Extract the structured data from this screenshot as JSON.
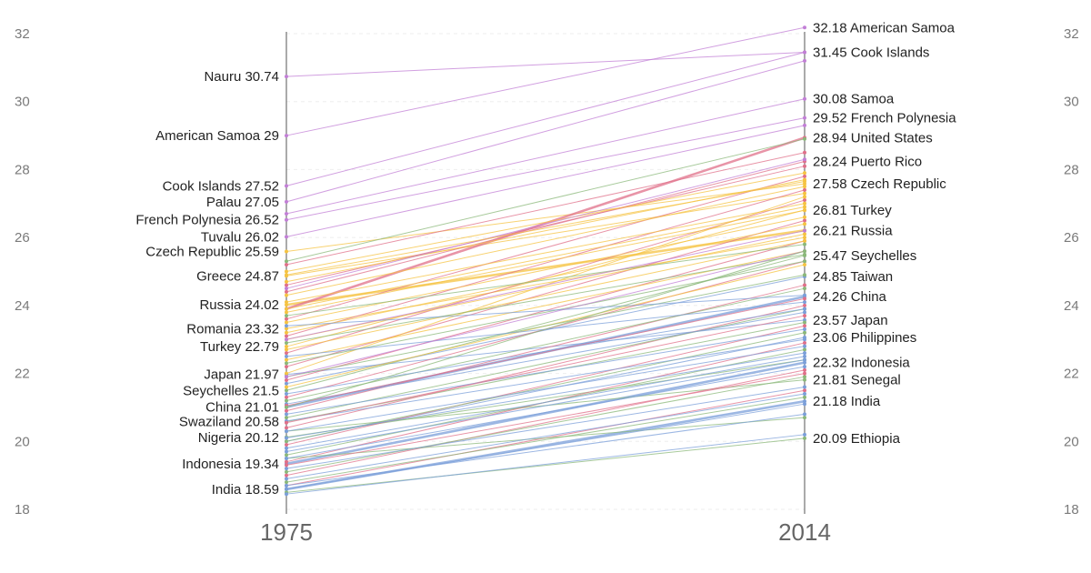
{
  "chart_data": {
    "type": "line",
    "chart_style": "slope",
    "x": [
      "1975",
      "2014"
    ],
    "ylim": [
      18,
      32
    ],
    "yticks": [
      18,
      20,
      22,
      24,
      26,
      28,
      30,
      32
    ],
    "grid": false,
    "legend": "none",
    "colors": {
      "oceania": "#c27fd6",
      "americas": "#e0708a",
      "europe": "#f5c342",
      "africa": "#8bb87a",
      "asia": "#7b9fd9"
    },
    "labeled_start": [
      {
        "name": "Nauru",
        "value": 30.74,
        "text": "Nauru 30.74"
      },
      {
        "name": "American Samoa",
        "value": 29,
        "text": "American Samoa 29"
      },
      {
        "name": "Cook Islands",
        "value": 27.52,
        "text": "Cook Islands 27.52"
      },
      {
        "name": "Palau",
        "value": 27.05,
        "text": "Palau 27.05"
      },
      {
        "name": "French Polynesia",
        "value": 26.52,
        "text": "French Polynesia 26.52"
      },
      {
        "name": "Tuvalu",
        "value": 26.02,
        "text": "Tuvalu 26.02"
      },
      {
        "name": "Czech Republic",
        "value": 25.59,
        "text": "Czech Republic 25.59"
      },
      {
        "name": "Greece",
        "value": 24.87,
        "text": "Greece 24.87"
      },
      {
        "name": "Russia",
        "value": 24.02,
        "text": "Russia 24.02"
      },
      {
        "name": "Romania",
        "value": 23.32,
        "text": "Romania 23.32"
      },
      {
        "name": "Turkey",
        "value": 22.79,
        "text": "Turkey 22.79"
      },
      {
        "name": "Japan",
        "value": 21.97,
        "text": "Japan 21.97"
      },
      {
        "name": "Seychelles",
        "value": 21.5,
        "text": "Seychelles 21.5"
      },
      {
        "name": "China",
        "value": 21.01,
        "text": "China 21.01"
      },
      {
        "name": "Swaziland",
        "value": 20.58,
        "text": "Swaziland 20.58"
      },
      {
        "name": "Nigeria",
        "value": 20.12,
        "text": "Nigeria 20.12"
      },
      {
        "name": "Indonesia",
        "value": 19.34,
        "text": "Indonesia 19.34"
      },
      {
        "name": "India",
        "value": 18.59,
        "text": "India 18.59"
      }
    ],
    "labeled_end": [
      {
        "name": "American Samoa",
        "value": 32.18,
        "text": "32.18 American Samoa"
      },
      {
        "name": "Cook Islands",
        "value": 31.45,
        "text": "31.45 Cook Islands"
      },
      {
        "name": "Samoa",
        "value": 30.08,
        "text": "30.08 Samoa"
      },
      {
        "name": "French Polynesia",
        "value": 29.52,
        "text": "29.52 French Polynesia"
      },
      {
        "name": "United States",
        "value": 28.94,
        "text": "28.94 United States"
      },
      {
        "name": "Puerto Rico",
        "value": 28.24,
        "text": "28.24 Puerto Rico"
      },
      {
        "name": "Czech Republic",
        "value": 27.58,
        "text": "27.58 Czech Republic"
      },
      {
        "name": "Turkey",
        "value": 26.81,
        "text": "26.81 Turkey"
      },
      {
        "name": "Russia",
        "value": 26.21,
        "text": "26.21 Russia"
      },
      {
        "name": "Seychelles",
        "value": 25.47,
        "text": "25.47 Seychelles"
      },
      {
        "name": "Taiwan",
        "value": 24.85,
        "text": "24.85 Taiwan"
      },
      {
        "name": "China",
        "value": 24.26,
        "text": "24.26 China"
      },
      {
        "name": "Japan",
        "value": 23.57,
        "text": "23.57 Japan"
      },
      {
        "name": "Philippines",
        "value": 23.06,
        "text": "23.06 Philippines"
      },
      {
        "name": "Indonesia",
        "value": 22.32,
        "text": "22.32 Indonesia"
      },
      {
        "name": "Senegal",
        "value": 21.81,
        "text": "21.81 Senegal"
      },
      {
        "name": "India",
        "value": 21.18,
        "text": "21.18 India"
      },
      {
        "name": "Ethiopia",
        "value": 20.09,
        "text": "20.09 Ethiopia"
      }
    ],
    "series": [
      {
        "name": "Nauru",
        "region": "oceania",
        "values": [
          30.74,
          31.45
        ]
      },
      {
        "name": "American Samoa",
        "region": "oceania",
        "values": [
          29,
          32.18
        ]
      },
      {
        "name": "Cook Islands",
        "region": "oceania",
        "values": [
          27.52,
          31.45
        ]
      },
      {
        "name": "Palau",
        "region": "oceania",
        "values": [
          27.05,
          31.2
        ]
      },
      {
        "name": "French Polynesia",
        "region": "oceania",
        "values": [
          26.52,
          29.52
        ]
      },
      {
        "name": "Tuvalu",
        "region": "oceania",
        "values": [
          26.02,
          29.3
        ]
      },
      {
        "name": "Samoa",
        "region": "oceania",
        "values": [
          26.7,
          30.08
        ]
      },
      {
        "name": "Czech Republic",
        "region": "europe",
        "values": [
          25.59,
          27.58
        ]
      },
      {
        "name": "Greece",
        "region": "europe",
        "values": [
          24.87,
          27.3
        ]
      },
      {
        "name": "Russia",
        "region": "europe",
        "values": [
          24.02,
          26.21
        ]
      },
      {
        "name": "Romania",
        "region": "europe",
        "values": [
          23.32,
          26.0
        ]
      },
      {
        "name": "Turkey",
        "region": "europe",
        "values": [
          22.79,
          26.81
        ]
      },
      {
        "name": "Japan",
        "region": "asia",
        "values": [
          21.97,
          23.57
        ]
      },
      {
        "name": "Seychelles",
        "region": "africa",
        "values": [
          21.5,
          25.47
        ]
      },
      {
        "name": "China",
        "region": "asia",
        "values": [
          21.01,
          24.26
        ]
      },
      {
        "name": "Swaziland",
        "region": "africa",
        "values": [
          20.58,
          23.5
        ]
      },
      {
        "name": "Nigeria",
        "region": "africa",
        "values": [
          20.12,
          22.4
        ]
      },
      {
        "name": "Indonesia",
        "region": "asia",
        "values": [
          19.34,
          22.32
        ]
      },
      {
        "name": "India",
        "region": "asia",
        "values": [
          18.59,
          21.18
        ]
      },
      {
        "name": "United States",
        "region": "americas",
        "values": [
          23.9,
          28.94
        ]
      },
      {
        "name": "Puerto Rico",
        "region": "americas",
        "values": [
          24.4,
          28.24
        ]
      },
      {
        "name": "Taiwan",
        "region": "asia",
        "values": [
          21.7,
          24.85
        ]
      },
      {
        "name": "Philippines",
        "region": "asia",
        "values": [
          20.0,
          23.06
        ]
      },
      {
        "name": "Senegal",
        "region": "africa",
        "values": [
          20.3,
          21.81
        ]
      },
      {
        "name": "Ethiopia",
        "region": "africa",
        "values": [
          18.5,
          20.09
        ]
      },
      {
        "name": "",
        "region": "americas",
        "values": [
          25.2,
          28.5
        ]
      },
      {
        "name": "",
        "region": "americas",
        "values": [
          24.6,
          28.1
        ]
      },
      {
        "name": "",
        "region": "americas",
        "values": [
          23.6,
          27.8
        ]
      },
      {
        "name": "",
        "region": "americas",
        "values": [
          23.1,
          27.4
        ]
      },
      {
        "name": "",
        "region": "americas",
        "values": [
          22.6,
          27.1
        ]
      },
      {
        "name": "",
        "region": "americas",
        "values": [
          22.2,
          26.5
        ]
      },
      {
        "name": "",
        "region": "americas",
        "values": [
          21.8,
          25.9
        ]
      },
      {
        "name": "",
        "region": "americas",
        "values": [
          21.3,
          25.3
        ]
      },
      {
        "name": "",
        "region": "americas",
        "values": [
          20.9,
          24.6
        ]
      },
      {
        "name": "",
        "region": "americas",
        "values": [
          20.4,
          24.0
        ]
      },
      {
        "name": "",
        "region": "americas",
        "values": [
          19.9,
          23.4
        ]
      },
      {
        "name": "",
        "region": "americas",
        "values": [
          19.4,
          22.9
        ]
      },
      {
        "name": "",
        "region": "americas",
        "values": [
          19.0,
          22.1
        ]
      },
      {
        "name": "",
        "region": "americas",
        "values": [
          18.7,
          21.5
        ]
      },
      {
        "name": "",
        "region": "europe",
        "values": [
          25.0,
          27.9
        ]
      },
      {
        "name": "",
        "region": "europe",
        "values": [
          24.7,
          27.7
        ]
      },
      {
        "name": "",
        "region": "europe",
        "values": [
          24.3,
          27.5
        ]
      },
      {
        "name": "",
        "region": "europe",
        "values": [
          24.1,
          27.0
        ]
      },
      {
        "name": "",
        "region": "europe",
        "values": [
          23.8,
          26.8
        ]
      },
      {
        "name": "",
        "region": "europe",
        "values": [
          23.5,
          26.6
        ]
      },
      {
        "name": "",
        "region": "europe",
        "values": [
          23.2,
          26.4
        ]
      },
      {
        "name": "",
        "region": "europe",
        "values": [
          23.0,
          26.1
        ]
      },
      {
        "name": "",
        "region": "europe",
        "values": [
          22.7,
          25.9
        ]
      },
      {
        "name": "",
        "region": "europe",
        "values": [
          22.4,
          25.6
        ]
      },
      {
        "name": "",
        "region": "europe",
        "values": [
          22.0,
          27.2
        ]
      },
      {
        "name": "",
        "region": "europe",
        "values": [
          21.6,
          25.2
        ]
      },
      {
        "name": "",
        "region": "africa",
        "values": [
          25.3,
          28.9
        ]
      },
      {
        "name": "",
        "region": "africa",
        "values": [
          23.7,
          25.8
        ]
      },
      {
        "name": "",
        "region": "africa",
        "values": [
          22.9,
          25.5
        ]
      },
      {
        "name": "",
        "region": "africa",
        "values": [
          22.3,
          25.3
        ]
      },
      {
        "name": "",
        "region": "africa",
        "values": [
          21.9,
          24.9
        ]
      },
      {
        "name": "",
        "region": "africa",
        "values": [
          21.2,
          24.5
        ]
      },
      {
        "name": "",
        "region": "africa",
        "values": [
          20.7,
          23.9
        ]
      },
      {
        "name": "",
        "region": "africa",
        "values": [
          20.0,
          23.2
        ]
      },
      {
        "name": "",
        "region": "africa",
        "values": [
          19.6,
          22.7
        ]
      },
      {
        "name": "",
        "region": "africa",
        "values": [
          19.1,
          21.9
        ]
      },
      {
        "name": "",
        "region": "africa",
        "values": [
          18.8,
          21.3
        ]
      },
      {
        "name": "",
        "region": "africa",
        "values": [
          19.5,
          20.7
        ]
      },
      {
        "name": "",
        "region": "asia",
        "values": [
          23.4,
          24.3
        ]
      },
      {
        "name": "",
        "region": "asia",
        "values": [
          22.5,
          24.1
        ]
      },
      {
        "name": "",
        "region": "asia",
        "values": [
          21.4,
          23.9
        ]
      },
      {
        "name": "",
        "region": "asia",
        "values": [
          21.1,
          23.8
        ]
      },
      {
        "name": "",
        "region": "asia",
        "values": [
          20.8,
          23.3
        ]
      },
      {
        "name": "",
        "region": "asia",
        "values": [
          20.6,
          23.0
        ]
      },
      {
        "name": "",
        "region": "asia",
        "values": [
          20.3,
          22.8
        ]
      },
      {
        "name": "",
        "region": "asia",
        "values": [
          20.1,
          22.6
        ]
      },
      {
        "name": "",
        "region": "asia",
        "values": [
          19.8,
          22.5
        ]
      },
      {
        "name": "",
        "region": "asia",
        "values": [
          19.5,
          22.2
        ]
      },
      {
        "name": "",
        "region": "asia",
        "values": [
          19.2,
          21.6
        ]
      },
      {
        "name": "",
        "region": "asia",
        "values": [
          18.9,
          21.4
        ]
      },
      {
        "name": "",
        "region": "asia",
        "values": [
          18.7,
          20.8
        ]
      },
      {
        "name": "",
        "region": "asia",
        "values": [
          18.45,
          20.2
        ]
      },
      {
        "name": "",
        "region": "oceania",
        "values": [
          24.5,
          28.3
        ]
      },
      {
        "name": "",
        "region": "oceania",
        "values": [
          23.0,
          26.2
        ]
      },
      {
        "name": "",
        "region": "oceania",
        "values": [
          21.9,
          25.6
        ]
      },
      {
        "name": "",
        "region": "americas",
        "values": [
          21.05,
          24.2
        ]
      },
      {
        "name": "",
        "region": "americas",
        "values": [
          20.55,
          23.7
        ]
      },
      {
        "name": "",
        "region": "americas",
        "values": [
          19.3,
          22.0
        ]
      },
      {
        "name": "",
        "region": "europe",
        "values": [
          24.9,
          27.65
        ]
      },
      {
        "name": "",
        "region": "europe",
        "values": [
          23.9,
          26.9
        ]
      },
      {
        "name": "",
        "region": "africa",
        "values": [
          21.0,
          25.6
        ]
      },
      {
        "name": "",
        "region": "asia",
        "values": [
          18.6,
          21.1
        ]
      },
      {
        "name": "",
        "region": "asia",
        "values": [
          19.7,
          22.4
        ]
      }
    ]
  }
}
